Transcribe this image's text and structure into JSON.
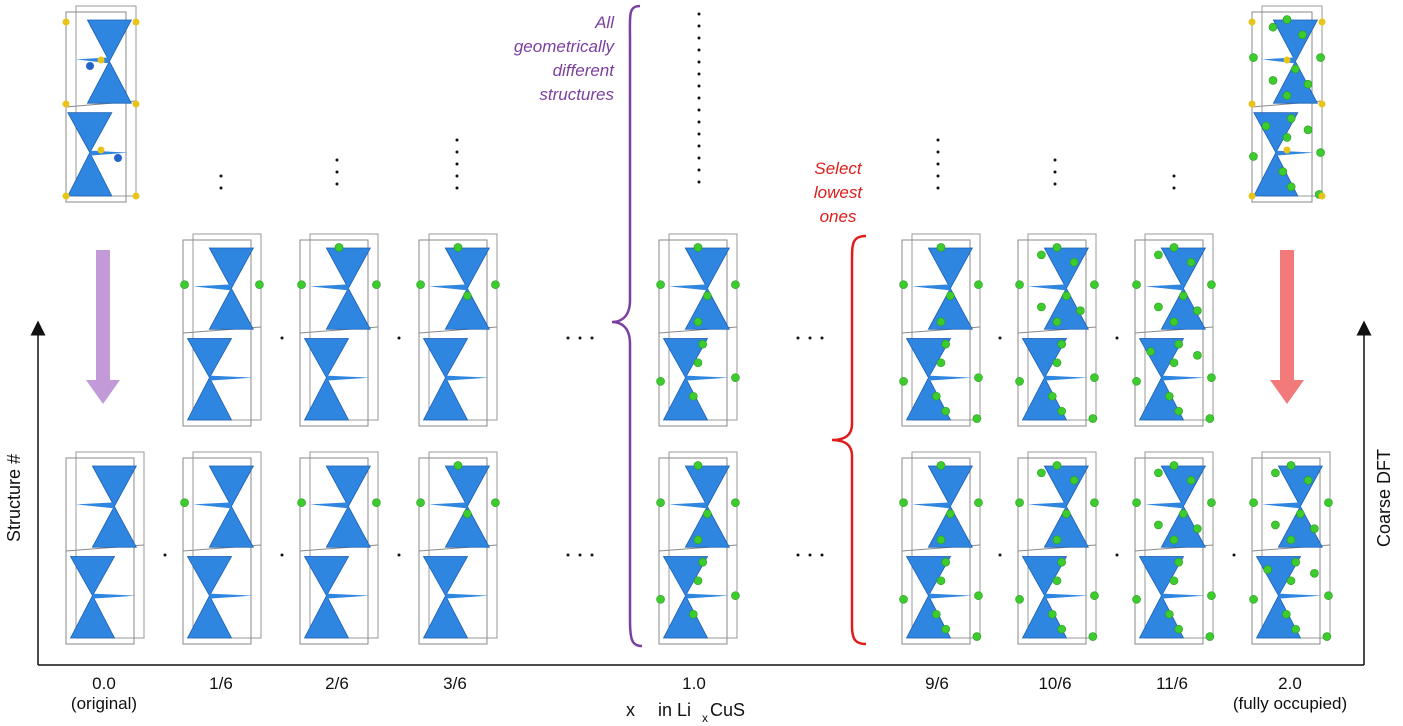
{
  "figure": {
    "x_axis": {
      "title_prefix": "x",
      "title_text": "in Li",
      "title_sub": "x",
      "title_suffix": "CuS",
      "ticks": [
        {
          "label": "0.0",
          "sublabel": "(original)"
        },
        {
          "label": "1/6",
          "sublabel": ""
        },
        {
          "label": "2/6",
          "sublabel": ""
        },
        {
          "label": "3/6",
          "sublabel": ""
        },
        {
          "label": "1.0",
          "sublabel": ""
        },
        {
          "label": "9/6",
          "sublabel": ""
        },
        {
          "label": "10/6",
          "sublabel": ""
        },
        {
          "label": "11/6",
          "sublabel": ""
        },
        {
          "label": "2.0",
          "sublabel": "(fully occupied)"
        }
      ]
    },
    "y_axis_left": {
      "label": "Structure #"
    },
    "y_axis_right": {
      "label": "Coarse DFT"
    },
    "annotations": {
      "enumerate": {
        "lines": [
          "All",
          "geometrically",
          "different",
          "structures"
        ],
        "color": "#7b3fa0"
      },
      "select": {
        "lines": [
          "Select",
          "lowest",
          "ones"
        ],
        "color": "#e01b1b"
      }
    },
    "colors": {
      "tetrahedron": "#2f86e0",
      "tetrahedron_dark": "#1d5fb3",
      "lithium_atom": "#3ccc2e",
      "sulfur_atom": "#e8c41a",
      "copper_atom": "#2464c8",
      "arrow_left": "#c39ad8",
      "arrow_right": "#f27a7a"
    },
    "structure_icons": [
      "tetrahedron-unit-cell",
      "lithium-atom"
    ]
  }
}
